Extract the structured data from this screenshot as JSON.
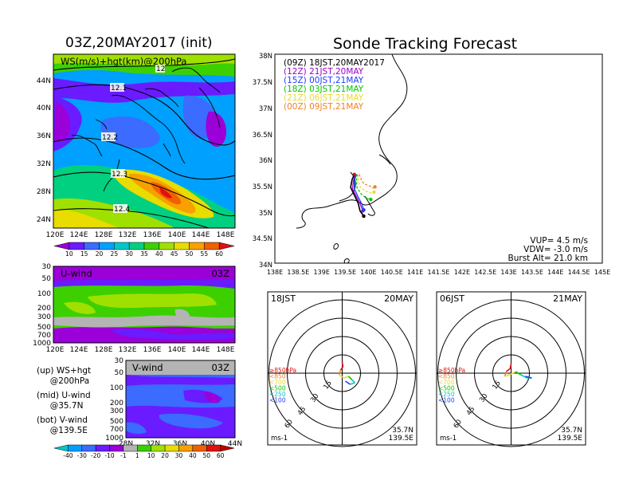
{
  "titles": {
    "left": "03Z,20MAY2017 (init)",
    "right": "Sonde Tracking Forecast"
  },
  "map_panel": {
    "label": "WS(m/s)+hgt(km)@200hPa",
    "contours": [
      "12.1",
      "12.2",
      "12.3",
      "12.4",
      "12"
    ],
    "lat_labels": [
      "44N",
      "40N",
      "36N",
      "32N",
      "28N",
      "24N"
    ],
    "lon_labels": [
      "120E",
      "124E",
      "128E",
      "132E",
      "136E",
      "140E",
      "144E",
      "148E"
    ],
    "colorbar": [
      "10",
      "15",
      "20",
      "25",
      "30",
      "35",
      "40",
      "45",
      "50",
      "55",
      "60"
    ],
    "colors": [
      "#9b00d8",
      "#6a1bff",
      "#3b6bff",
      "#00a0ff",
      "#00c8c8",
      "#00d080",
      "#3cd000",
      "#a0e000",
      "#e8dc00",
      "#f8a000",
      "#f06000",
      "#e01010"
    ]
  },
  "u_panel": {
    "label": "U-wind",
    "time": "03Z",
    "y_labels": [
      "30",
      "50",
      "100",
      "200",
      "300",
      "500",
      "700",
      "1000"
    ],
    "x_labels": [
      "120E",
      "124E",
      "128E",
      "132E",
      "136E",
      "140E",
      "144E",
      "148E"
    ]
  },
  "v_panel": {
    "label": "V-wind",
    "time": "03Z",
    "y_labels": [
      "30",
      "50",
      "100",
      "200",
      "300",
      "500",
      "700",
      "1000"
    ],
    "x_labels": [
      "28N",
      "32N",
      "36N",
      "40N",
      "44N"
    ]
  },
  "legend_text": {
    "up_1": "(up) WS+hgt",
    "up_2": "     @200hPa",
    "mid_1": "(mid) U-wind",
    "mid_2": "     @35.7N",
    "bot_1": "(bot) V-wind",
    "bot_2": "     @139.5E"
  },
  "bottom_colorbar": [
    "-40",
    "-30",
    "-20",
    "-10",
    "-1",
    "1",
    "10",
    "20",
    "30",
    "40",
    "50",
    "60"
  ],
  "tracking": {
    "legend": [
      {
        "label": "(09Z) 18JST,20MAY2017",
        "color": "#000000"
      },
      {
        "label": "(12Z) 21JST,20MAY",
        "color": "#a000c8"
      },
      {
        "label": "(15Z) 00JST,21MAY",
        "color": "#1e3cff"
      },
      {
        "label": "(18Z) 03JST,21MAY",
        "color": "#00c800"
      },
      {
        "label": "(21Z) 06JST,21MAY",
        "color": "#e6dc32"
      },
      {
        "label": "(00Z) 09JST,21MAY",
        "color": "#f08228"
      }
    ],
    "lat_labels": [
      "38N",
      "37.5N",
      "37N",
      "36.5N",
      "36N",
      "35.5N",
      "35N",
      "34.5N",
      "34N"
    ],
    "lon_labels": [
      "138E",
      "138.5E",
      "139E",
      "139.5E",
      "140E",
      "140.5E",
      "141E",
      "141.5E",
      "142E",
      "142.5E",
      "143E",
      "143.5E",
      "144E",
      "144.5E",
      "145E"
    ],
    "vup": "VUP= 4.5 m/s",
    "vdw": "VDW= -3.0 m/s",
    "burst": "Burst Alt= 21.0 km"
  },
  "hodo_left": {
    "time": "18JST",
    "date": "20MAY",
    "rings": [
      "15",
      "30",
      "45",
      "60"
    ],
    "levels": [
      {
        "label": "≥850hPa",
        "color": "#e01010"
      },
      {
        "label": "<850",
        "color": "#f08228"
      },
      {
        "label": "<700",
        "color": "#e6dc32"
      },
      {
        "label": "<500",
        "color": "#00c800"
      },
      {
        "label": "<250",
        "color": "#00c8c8"
      },
      {
        "label": "<100",
        "color": "#1e3cff"
      }
    ],
    "lat": "35.7N",
    "lon": "139.5E",
    "unit": "ms-1"
  },
  "hodo_right": {
    "time": "06JST",
    "date": "21MAY",
    "rings": [
      "15",
      "30",
      "45",
      "60"
    ],
    "levels": [
      {
        "label": "≥850hPa",
        "color": "#e01010"
      },
      {
        "label": "<850",
        "color": "#f08228"
      },
      {
        "label": "<700",
        "color": "#e6dc32"
      },
      {
        "label": "<500",
        "color": "#00c800"
      },
      {
        "label": "<250",
        "color": "#00c8c8"
      },
      {
        "label": "<100",
        "color": "#1e3cff"
      }
    ],
    "lat": "35.7N",
    "lon": "139.5E",
    "unit": "ms-1"
  },
  "chart_data": [
    {
      "type": "heatmap",
      "title": "03Z,20MAY2017 (init)",
      "variable": "WS(m/s)+hgt(km)@200hPa",
      "x_ticks": [
        "120E",
        "124E",
        "128E",
        "132E",
        "136E",
        "140E",
        "144E",
        "148E"
      ],
      "y_ticks": [
        "44N",
        "40N",
        "36N",
        "32N",
        "28N",
        "24N"
      ],
      "contour_levels": [
        12,
        12.1,
        12.2,
        12.3,
        12.4
      ],
      "color_levels": [
        10,
        15,
        20,
        25,
        30,
        35,
        40,
        45,
        50,
        55,
        60
      ]
    },
    {
      "type": "heatmap",
      "variable": "U-wind",
      "x_ticks": [
        "120E",
        "124E",
        "128E",
        "132E",
        "136E",
        "140E",
        "144E",
        "148E"
      ],
      "y_ticks": [
        30,
        50,
        100,
        200,
        300,
        500,
        700,
        1000
      ]
    },
    {
      "type": "heatmap",
      "variable": "V-wind",
      "x_ticks": [
        "28N",
        "32N",
        "36N",
        "40N",
        "44N"
      ],
      "y_ticks": [
        30,
        50,
        100,
        200,
        300,
        500,
        700,
        1000
      ],
      "color_levels": [
        -40,
        -30,
        -20,
        -10,
        -1,
        1,
        10,
        20,
        30,
        40,
        50,
        60
      ]
    },
    {
      "type": "line",
      "title": "Sonde Tracking Forecast",
      "xlim": [
        138,
        145
      ],
      "ylim": [
        34,
        38
      ],
      "series": [
        {
          "name": "(09Z) 18JST,20MAY2017",
          "x": [
            139.7,
            139.65,
            139.62,
            139.7,
            139.78,
            139.82,
            139.9
          ],
          "y": [
            35.7,
            35.6,
            35.45,
            35.3,
            35.15,
            35.0,
            34.9
          ]
        },
        {
          "name": "(12Z) 21JST,20MAY",
          "x": [
            139.72,
            139.68,
            139.66,
            139.74,
            139.83,
            139.88
          ],
          "y": [
            35.7,
            35.58,
            35.42,
            35.28,
            35.12,
            35.0
          ]
        },
        {
          "name": "(15Z) 00JST,21MAY",
          "x": [
            139.74,
            139.7,
            139.7,
            139.78,
            139.86,
            139.9
          ],
          "y": [
            35.7,
            35.58,
            35.42,
            35.27,
            35.13,
            35.02
          ]
        },
        {
          "name": "(18Z) 03JST,21MAY",
          "x": [
            139.76,
            139.74,
            139.76,
            139.85,
            139.96,
            140.05
          ],
          "y": [
            35.7,
            35.58,
            35.44,
            35.32,
            35.24,
            35.22
          ]
        },
        {
          "name": "(21Z) 06JST,21MAY",
          "x": [
            139.78,
            139.78,
            139.82,
            139.94,
            140.06,
            140.12
          ],
          "y": [
            35.7,
            35.58,
            35.46,
            35.38,
            35.34,
            35.36
          ]
        },
        {
          "name": "(00Z) 09JST,21MAY",
          "x": [
            139.8,
            139.84,
            139.9,
            140.02,
            140.1,
            140.14
          ],
          "y": [
            35.7,
            35.62,
            35.52,
            35.48,
            35.44,
            35.46
          ]
        }
      ]
    }
  ]
}
